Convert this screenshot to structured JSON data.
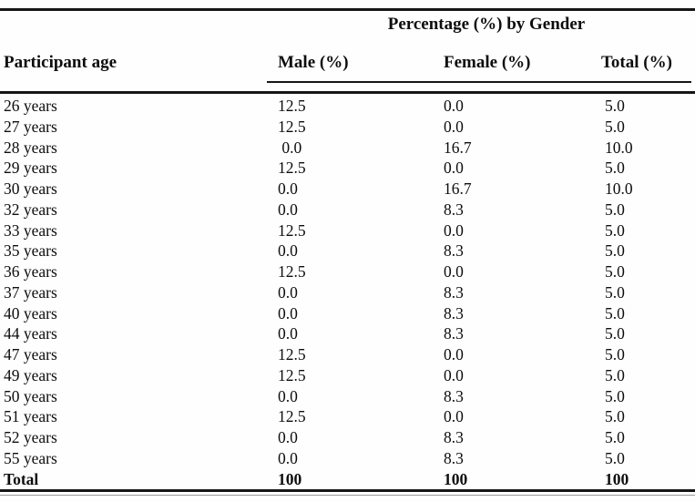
{
  "table": {
    "spanning_header": "Percentage (%) by Gender",
    "columns": {
      "age": "Participant age",
      "male": "Male (%)",
      "female": "Female (%)",
      "total": "Total (%)"
    },
    "rows": [
      {
        "age": "26 years",
        "male": "12.5",
        "female": "0.0",
        "total": "5.0"
      },
      {
        "age": "27 years",
        "male": "12.5",
        "female": "0.0",
        "total": "5.0"
      },
      {
        "age": "28 years",
        "male": " 0.0",
        "female": "16.7",
        "total": "10.0"
      },
      {
        "age": "29 years",
        "male": "12.5",
        "female": "0.0",
        "total": "5.0"
      },
      {
        "age": "30 years",
        "male": "0.0",
        "female": "16.7",
        "total": "10.0"
      },
      {
        "age": "32 years",
        "male": "0.0",
        "female": "8.3",
        "total": "5.0"
      },
      {
        "age": "33 years",
        "male": "12.5",
        "female": "0.0",
        "total": "5.0"
      },
      {
        "age": "35 years",
        "male": "0.0",
        "female": "8.3",
        "total": "5.0"
      },
      {
        "age": "36 years",
        "male": "12.5",
        "female": "0.0",
        "total": "5.0"
      },
      {
        "age": "37 years",
        "male": "0.0",
        "female": "8.3",
        "total": "5.0"
      },
      {
        "age": "40 years",
        "male": "0.0",
        "female": "8.3",
        "total": "5.0"
      },
      {
        "age": "44 years",
        "male": "0.0",
        "female": "8.3",
        "total": "5.0"
      },
      {
        "age": "47 years",
        "male": "12.5",
        "female": "0.0",
        "total": "5.0"
      },
      {
        "age": "49 years",
        "male": "12.5",
        "female": "0.0",
        "total": "5.0"
      },
      {
        "age": "50 years",
        "male": "0.0",
        "female": "8.3",
        "total": "5.0"
      },
      {
        "age": "51 years",
        "male": "12.5",
        "female": "0.0",
        "total": "5.0"
      },
      {
        "age": "52 years",
        "male": "0.0",
        "female": "8.3",
        "total": "5.0"
      },
      {
        "age": "55 years",
        "male": "0.0",
        "female": "8.3",
        "total": "5.0"
      },
      {
        "age": "Total",
        "male": "100",
        "female": "100",
        "total": "100",
        "bold": true
      }
    ]
  },
  "colors": {
    "text": "#0d0d0d",
    "rule": "#161616",
    "background": "#fefefe"
  }
}
